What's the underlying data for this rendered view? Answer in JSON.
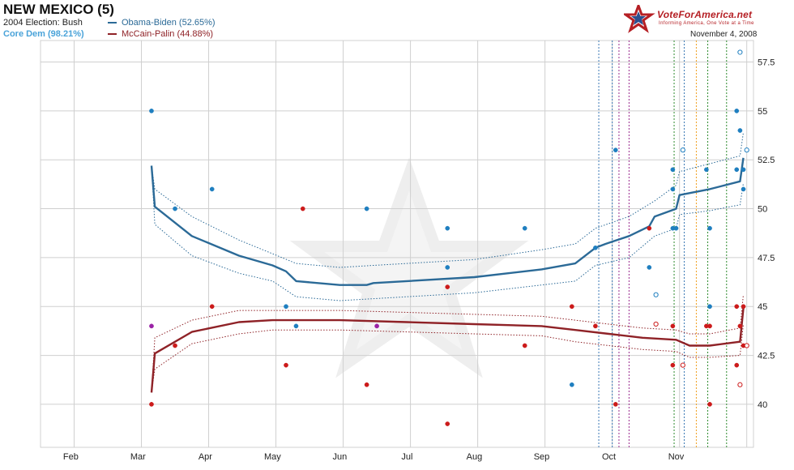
{
  "header": {
    "title": "NEW MEXICO (5)",
    "election": "2004 Election: Bush",
    "core_dem": "Core Dem (98.21%)",
    "date": "November 4, 2008",
    "brand": "VoteForAmerica.net",
    "tagline": "Informing America, One Vote at a Time"
  },
  "colors": {
    "obama": "#2b6a97",
    "obama_point": "#1f7fc0",
    "mccain": "#8f2227",
    "mccain_point": "#cc1b1b",
    "undecided_point": "#9a22a6",
    "grid": "#cfcfcf",
    "core_dem": "#4aa3d9",
    "vline_blue": "#3a78b4",
    "vline_purple": "#9b2d8f",
    "vline_green": "#2e8b2e",
    "vline_orange": "#f0a020"
  },
  "chart_data": {
    "type": "line",
    "x_ticks": [
      "Feb",
      "Mar",
      "Apr",
      "May",
      "Jun",
      "Jul",
      "Aug",
      "Sep",
      "Oct",
      "Nov"
    ],
    "y_ticks": [
      "40",
      "42.5",
      "45",
      "47.5",
      "50",
      "52.5",
      "55",
      "57.5"
    ],
    "ylim": [
      37.8,
      58.6
    ],
    "grid": true,
    "legend_position": "top-left",
    "series": [
      {
        "name": "Obama-Biden (52.65%)",
        "values": [
          [
            2.2,
            52.2
          ],
          [
            2.25,
            50.1
          ],
          [
            2.8,
            48.6
          ],
          [
            3.5,
            47.6
          ],
          [
            4.0,
            47.1
          ],
          [
            4.2,
            46.8
          ],
          [
            4.35,
            46.3
          ],
          [
            5.0,
            46.1
          ],
          [
            5.4,
            46.1
          ],
          [
            5.5,
            46.2
          ],
          [
            6.0,
            46.3
          ],
          [
            7.0,
            46.5
          ],
          [
            8.0,
            46.9
          ],
          [
            8.5,
            47.2
          ],
          [
            8.8,
            48.0
          ],
          [
            8.95,
            48.2
          ],
          [
            9.3,
            48.6
          ],
          [
            9.6,
            49.1
          ],
          [
            9.68,
            49.6
          ],
          [
            10.0,
            50.0
          ],
          [
            10.05,
            50.7
          ],
          [
            10.5,
            51.0
          ],
          [
            10.95,
            51.4
          ],
          [
            11.0,
            52.6
          ]
        ],
        "upper": [
          [
            2.2,
            52.2
          ],
          [
            2.25,
            51.0
          ],
          [
            2.8,
            49.6
          ],
          [
            3.5,
            48.4
          ],
          [
            4.0,
            47.7
          ],
          [
            4.35,
            47.2
          ],
          [
            5.0,
            47.0
          ],
          [
            5.5,
            47.1
          ],
          [
            6.0,
            47.2
          ],
          [
            7.0,
            47.4
          ],
          [
            8.0,
            47.9
          ],
          [
            8.5,
            48.2
          ],
          [
            8.8,
            49.0
          ],
          [
            9.3,
            49.6
          ],
          [
            9.68,
            50.4
          ],
          [
            10.0,
            51.2
          ],
          [
            10.05,
            51.9
          ],
          [
            10.5,
            52.3
          ],
          [
            10.95,
            52.7
          ],
          [
            11.0,
            53.9
          ]
        ],
        "lower": [
          [
            2.2,
            52.2
          ],
          [
            2.25,
            49.2
          ],
          [
            2.8,
            47.6
          ],
          [
            3.5,
            46.7
          ],
          [
            4.0,
            46.3
          ],
          [
            4.35,
            45.5
          ],
          [
            5.0,
            45.3
          ],
          [
            5.5,
            45.4
          ],
          [
            6.0,
            45.5
          ],
          [
            7.0,
            45.7
          ],
          [
            8.0,
            46.1
          ],
          [
            8.5,
            46.3
          ],
          [
            8.8,
            47.1
          ],
          [
            9.3,
            47.5
          ],
          [
            9.68,
            48.6
          ],
          [
            10.0,
            49.0
          ],
          [
            10.05,
            49.7
          ],
          [
            10.5,
            49.9
          ],
          [
            10.95,
            50.2
          ],
          [
            11.0,
            51.3
          ]
        ]
      },
      {
        "name": "McCain-Palin (44.88%)",
        "values": [
          [
            2.2,
            40.6
          ],
          [
            2.25,
            42.6
          ],
          [
            2.8,
            43.7
          ],
          [
            3.5,
            44.2
          ],
          [
            4.0,
            44.3
          ],
          [
            4.5,
            44.3
          ],
          [
            5.0,
            44.3
          ],
          [
            6.0,
            44.2
          ],
          [
            7.0,
            44.1
          ],
          [
            8.0,
            44.0
          ],
          [
            8.5,
            43.8
          ],
          [
            9.0,
            43.6
          ],
          [
            9.5,
            43.4
          ],
          [
            10.0,
            43.3
          ],
          [
            10.2,
            43.0
          ],
          [
            10.5,
            43.0
          ],
          [
            10.95,
            43.2
          ],
          [
            11.0,
            44.9
          ]
        ],
        "upper": [
          [
            2.2,
            40.6
          ],
          [
            2.25,
            43.4
          ],
          [
            2.8,
            44.3
          ],
          [
            3.5,
            44.8
          ],
          [
            4.0,
            44.8
          ],
          [
            5.0,
            44.8
          ],
          [
            6.0,
            44.7
          ],
          [
            7.0,
            44.6
          ],
          [
            8.0,
            44.5
          ],
          [
            8.5,
            44.3
          ],
          [
            9.0,
            44.1
          ],
          [
            9.5,
            43.9
          ],
          [
            10.0,
            43.8
          ],
          [
            10.2,
            43.6
          ],
          [
            10.5,
            43.6
          ],
          [
            10.95,
            43.9
          ],
          [
            11.0,
            45.6
          ]
        ],
        "lower": [
          [
            2.2,
            40.6
          ],
          [
            2.25,
            41.8
          ],
          [
            2.8,
            43.1
          ],
          [
            3.5,
            43.6
          ],
          [
            4.0,
            43.8
          ],
          [
            5.0,
            43.8
          ],
          [
            6.0,
            43.7
          ],
          [
            7.0,
            43.6
          ],
          [
            8.0,
            43.5
          ],
          [
            8.5,
            43.2
          ],
          [
            9.0,
            43.0
          ],
          [
            9.5,
            42.8
          ],
          [
            10.0,
            42.7
          ],
          [
            10.2,
            42.4
          ],
          [
            10.5,
            42.4
          ],
          [
            10.95,
            42.5
          ],
          [
            11.0,
            44.1
          ]
        ]
      }
    ],
    "polls_obama": [
      [
        2.2,
        55
      ],
      [
        2.55,
        50
      ],
      [
        3.1,
        51
      ],
      [
        4.2,
        45
      ],
      [
        4.35,
        44
      ],
      [
        5.4,
        50
      ],
      [
        6.6,
        49
      ],
      [
        6.6,
        47
      ],
      [
        7.75,
        49
      ],
      [
        8.45,
        41
      ],
      [
        8.8,
        48
      ],
      [
        9.1,
        53
      ],
      [
        9.6,
        47
      ],
      [
        9.95,
        52
      ],
      [
        9.95,
        51
      ],
      [
        9.95,
        49
      ],
      [
        10.0,
        49
      ],
      [
        10.45,
        52
      ],
      [
        10.5,
        49
      ],
      [
        10.5,
        45
      ],
      [
        10.9,
        55
      ],
      [
        10.9,
        52
      ],
      [
        10.95,
        54
      ],
      [
        11.0,
        51
      ],
      [
        11.0,
        52
      ]
    ],
    "polls_obama_open": [
      [
        9.7,
        45.6
      ],
      [
        10.1,
        53
      ],
      [
        10.95,
        58
      ],
      [
        11.05,
        53
      ]
    ],
    "polls_mccain": [
      [
        2.2,
        40
      ],
      [
        2.55,
        43
      ],
      [
        3.1,
        45
      ],
      [
        4.2,
        42
      ],
      [
        4.45,
        50
      ],
      [
        5.4,
        41
      ],
      [
        6.6,
        46
      ],
      [
        6.6,
        39
      ],
      [
        7.75,
        43
      ],
      [
        8.45,
        45
      ],
      [
        8.8,
        44
      ],
      [
        9.1,
        40
      ],
      [
        9.6,
        49
      ],
      [
        9.95,
        44
      ],
      [
        9.95,
        42
      ],
      [
        10.45,
        44
      ],
      [
        10.5,
        44
      ],
      [
        10.5,
        40
      ],
      [
        10.9,
        45
      ],
      [
        10.9,
        42
      ],
      [
        10.95,
        44
      ],
      [
        11.0,
        45
      ],
      [
        11.0,
        43
      ]
    ],
    "polls_mccain_open": [
      [
        9.7,
        44.1
      ],
      [
        10.1,
        42
      ],
      [
        10.95,
        41
      ],
      [
        11.05,
        43
      ]
    ],
    "polls_undecided": [
      [
        2.2,
        44
      ],
      [
        5.55,
        44
      ]
    ],
    "vertical_lines": [
      {
        "x": 8.85,
        "color": "vline_blue"
      },
      {
        "x": 9.05,
        "color": "vline_blue"
      },
      {
        "x": 9.15,
        "color": "vline_purple"
      },
      {
        "x": 9.3,
        "color": "vline_purple"
      },
      {
        "x": 9.97,
        "color": "vline_green"
      },
      {
        "x": 10.12,
        "color": "vline_blue"
      },
      {
        "x": 10.3,
        "color": "vline_orange"
      },
      {
        "x": 10.47,
        "color": "vline_green"
      },
      {
        "x": 10.75,
        "color": "vline_green"
      }
    ]
  }
}
